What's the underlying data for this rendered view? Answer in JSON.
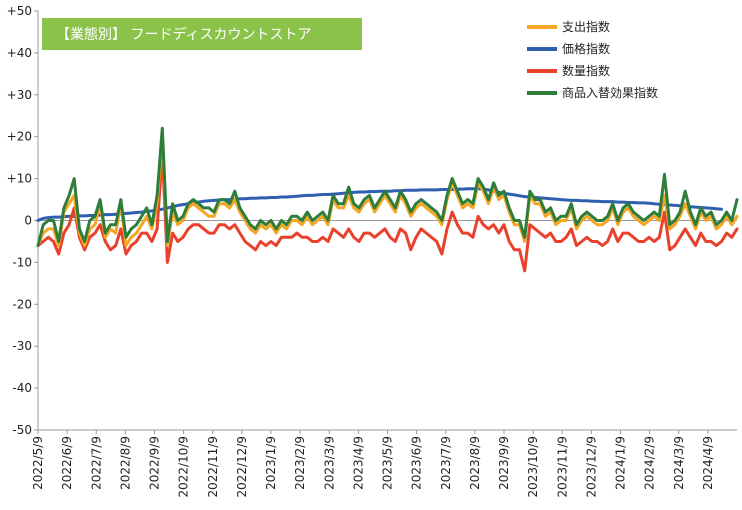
{
  "chart_data": {
    "type": "line",
    "title": "【業態別】 フードディスカウントストア",
    "ylim": [
      -50,
      50
    ],
    "yticks": [
      50,
      40,
      30,
      20,
      10,
      0,
      -10,
      -20,
      -30,
      -40,
      -50
    ],
    "ytick_labels": [
      "+50",
      "+40",
      "+30",
      "+20",
      "+10",
      "0",
      "-10",
      "-20",
      "-30",
      "-40",
      "-50"
    ],
    "xtick_labels": [
      "2022/5/9",
      "2022/6/9",
      "2022/7/9",
      "2022/8/9",
      "2022/9/9",
      "2022/10/9",
      "2022/11/9",
      "2022/12/9",
      "2023/1/9",
      "2023/2/9",
      "2023/3/9",
      "2023/4/9",
      "2023/5/9",
      "2023/6/9",
      "2023/7/9",
      "2023/8/9",
      "2023/9/9",
      "2023/10/9",
      "2023/11/9",
      "2023/12/9",
      "2024/1/9",
      "2024/2/9",
      "2024/3/9",
      "2024/4/9"
    ],
    "legend_position": "top-right",
    "grid": false,
    "series": [
      {
        "name": "支出指数",
        "color": "#F5A623",
        "values": [
          -6,
          -3,
          -2,
          -2,
          -6,
          2,
          4,
          6,
          -3,
          -6,
          -2,
          -1,
          4,
          -4,
          -2,
          -3,
          4,
          -6,
          -4,
          -3,
          -1,
          1,
          -2,
          4,
          20,
          -6,
          2,
          -1,
          0,
          3,
          4,
          3,
          2,
          1,
          1,
          4,
          4,
          3,
          5,
          2,
          0,
          -2,
          -3,
          -1,
          -2,
          -1,
          -3,
          -1,
          -2,
          0,
          0,
          -1,
          1,
          -1,
          0,
          1,
          -1,
          5,
          3,
          3,
          6,
          3,
          2,
          4,
          5,
          2,
          4,
          6,
          4,
          2,
          6,
          4,
          1,
          3,
          4,
          3,
          2,
          1,
          -1,
          5,
          9,
          6,
          3,
          4,
          3,
          9,
          7,
          4,
          8,
          5,
          6,
          2,
          -1,
          -1,
          -5,
          6,
          4,
          4,
          1,
          2,
          -1,
          0,
          0,
          3,
          -2,
          0,
          1,
          0,
          -1,
          -1,
          0,
          3,
          -1,
          2,
          3,
          1,
          0,
          -1,
          0,
          1,
          0,
          6,
          -2,
          -1,
          1,
          4,
          1,
          -2,
          2,
          0,
          1,
          -2,
          -1,
          1,
          -1,
          1
        ]
      },
      {
        "name": "価格指数",
        "color": "#2F5FAF",
        "values": [
          0,
          0.5,
          0.7,
          0.8,
          0.8,
          0.9,
          1.0,
          1.0,
          1.1,
          1.1,
          1.2,
          1.2,
          1.3,
          1.4,
          1.4,
          1.5,
          1.6,
          1.7,
          1.8,
          1.9,
          2.0,
          2.2,
          2.3,
          2.5,
          2.7,
          3.0,
          3.3,
          3.6,
          3.8,
          4.0,
          4.2,
          4.4,
          4.6,
          4.7,
          4.8,
          4.9,
          5.0,
          5.0,
          5.1,
          5.2,
          5.2,
          5.3,
          5.3,
          5.4,
          5.4,
          5.5,
          5.5,
          5.6,
          5.6,
          5.7,
          5.8,
          5.9,
          6.0,
          6.0,
          6.1,
          6.2,
          6.2,
          6.3,
          6.4,
          6.5,
          6.6,
          6.7,
          6.8,
          6.8,
          6.9,
          6.9,
          7.0,
          7.0,
          7.0,
          7.1,
          7.1,
          7.2,
          7.2,
          7.2,
          7.3,
          7.3,
          7.3,
          7.3,
          7.4,
          7.4,
          7.4,
          7.5,
          7.5,
          7.6,
          7.6,
          7.6,
          7.5,
          7.3,
          7.0,
          6.7,
          6.5,
          6.3,
          6.1,
          5.9,
          5.7,
          5.6,
          5.5,
          5.4,
          5.3,
          5.2,
          5.1,
          5.0,
          4.9,
          4.8,
          4.8,
          4.7,
          4.7,
          4.6,
          4.6,
          4.5,
          4.5,
          4.5,
          4.4,
          4.4,
          4.3,
          4.3,
          4.2,
          4.2,
          4.1,
          4.0,
          3.9,
          3.8,
          3.7,
          3.6,
          3.5,
          3.4,
          3.3,
          3.2,
          3.1,
          3.0,
          2.9,
          2.8,
          2.7
        ]
      },
      {
        "name": "数量指数",
        "color": "#E8412C",
        "values": [
          -6,
          -5,
          -4,
          -5,
          -8,
          -3,
          -1,
          3,
          -4,
          -7,
          -4,
          -3,
          -1,
          -5,
          -7,
          -6,
          -2,
          -8,
          -6,
          -5,
          -3,
          -3,
          -5,
          -2,
          16,
          -10,
          -3,
          -5,
          -4,
          -2,
          -1,
          -1,
          -2,
          -3,
          -3,
          -1,
          -1,
          -2,
          -1,
          -3,
          -5,
          -6,
          -7,
          -5,
          -6,
          -5,
          -6,
          -4,
          -4,
          -4,
          -3,
          -4,
          -4,
          -5,
          -5,
          -4,
          -5,
          -2,
          -3,
          -4,
          -2,
          -4,
          -5,
          -3,
          -3,
          -4,
          -3,
          -2,
          -4,
          -5,
          -2,
          -3,
          -7,
          -4,
          -2,
          -3,
          -4,
          -5,
          -8,
          -2,
          2,
          -1,
          -3,
          -3,
          -4,
          1,
          -1,
          -2,
          -1,
          -3,
          -1,
          -5,
          -7,
          -7,
          -12,
          -1,
          -2,
          -3,
          -4,
          -3,
          -5,
          -5,
          -4,
          -2,
          -6,
          -5,
          -4,
          -5,
          -5,
          -6,
          -5,
          -2,
          -5,
          -3,
          -3,
          -4,
          -5,
          -5,
          -4,
          -5,
          -4,
          2,
          -7,
          -6,
          -4,
          -2,
          -4,
          -6,
          -3,
          -5,
          -5,
          -6,
          -5,
          -3,
          -4,
          -2
        ]
      },
      {
        "name": "商品入替効果指数",
        "color": "#2E7D3A",
        "values": [
          -6,
          -1,
          0,
          0,
          -5,
          3,
          6,
          10,
          -2,
          -5,
          0,
          1,
          5,
          -3,
          -1,
          -1,
          5,
          -4,
          -2,
          -1,
          1,
          3,
          -1,
          6,
          22,
          -5,
          4,
          0,
          1,
          4,
          5,
          4,
          3,
          3,
          2,
          5,
          5,
          4,
          7,
          3,
          1,
          -1,
          -2,
          0,
          -1,
          0,
          -2,
          0,
          -1,
          1,
          1,
          0,
          2,
          0,
          1,
          2,
          0,
          6,
          4,
          4,
          8,
          4,
          3,
          5,
          6,
          3,
          5,
          7,
          5,
          3,
          7,
          5,
          2,
          4,
          5,
          4,
          3,
          2,
          0,
          6,
          10,
          7,
          4,
          5,
          4,
          10,
          8,
          5,
          9,
          6,
          7,
          3,
          0,
          0,
          -4,
          7,
          5,
          5,
          2,
          3,
          0,
          1,
          1,
          4,
          -1,
          1,
          2,
          1,
          0,
          0,
          1,
          4,
          0,
          3,
          4,
          2,
          1,
          0,
          1,
          2,
          1,
          11,
          -1,
          0,
          2,
          7,
          2,
          -1,
          3,
          1,
          2,
          -1,
          0,
          2,
          0,
          5
        ]
      }
    ]
  }
}
